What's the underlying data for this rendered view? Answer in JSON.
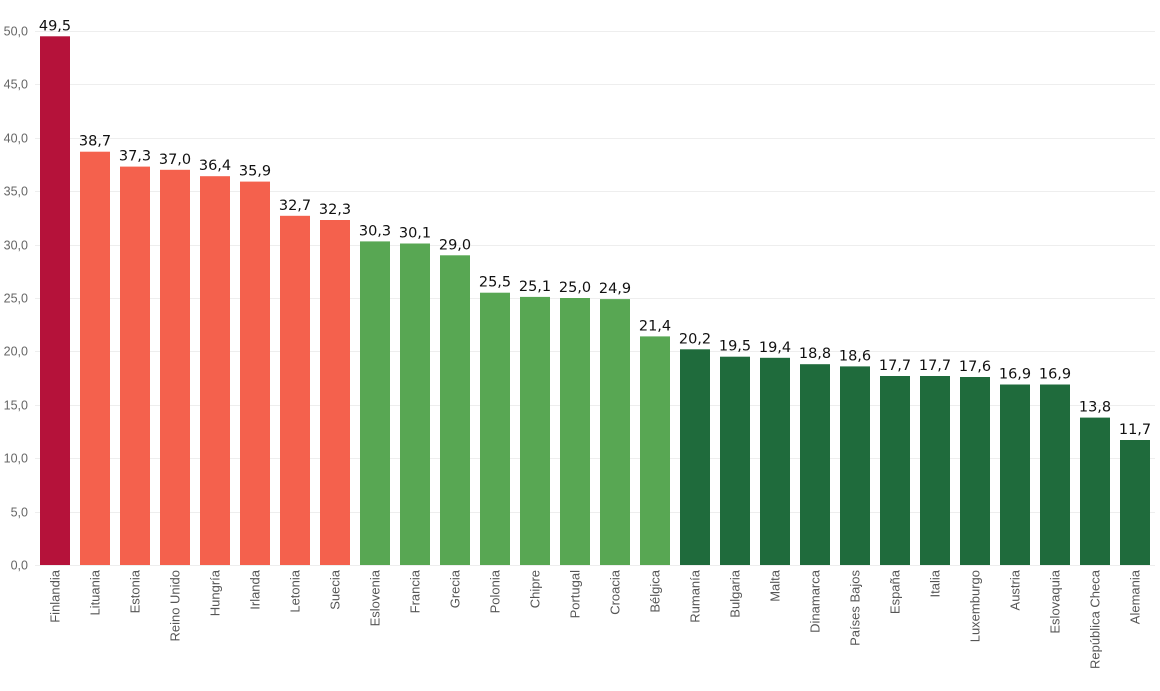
{
  "chart_data": {
    "type": "bar",
    "title": "",
    "xlabel": "",
    "ylabel": "",
    "ylim": [
      0,
      50
    ],
    "yticks": [
      0,
      5,
      10,
      15,
      20,
      25,
      30,
      35,
      40,
      45,
      50
    ],
    "ytick_labels": [
      "0,0",
      "5,0",
      "10,0",
      "15,0",
      "20,0",
      "25,0",
      "30,0",
      "35,0",
      "40,0",
      "45,0",
      "50,0"
    ],
    "grid": true,
    "categories": [
      "Finlandia",
      "Lituania",
      "Estonia",
      "Reino Unido",
      "Hungría",
      "Irlanda",
      "Letonia",
      "Suecia",
      "Eslovenia",
      "Francia",
      "Grecia",
      "Polonia",
      "Chipre",
      "Portugal",
      "Croacia",
      "Bélgica",
      "Rumanía",
      "Bulgaria",
      "Malta",
      "Dinamarca",
      "Países Bajos",
      "España",
      "Italia",
      "Luxemburgo",
      "Austria",
      "Eslovaquia",
      "República Checa",
      "Alemania"
    ],
    "values": [
      49.5,
      38.7,
      37.3,
      37.0,
      36.4,
      35.9,
      32.7,
      32.3,
      30.3,
      30.1,
      29.0,
      25.5,
      25.1,
      25.0,
      24.9,
      21.4,
      20.2,
      19.5,
      19.4,
      18.8,
      18.6,
      17.7,
      17.7,
      17.6,
      16.9,
      16.9,
      13.8,
      11.7
    ],
    "value_labels": [
      "49,5",
      "38,7",
      "37,3",
      "37,0",
      "36,4",
      "35,9",
      "32,7",
      "32,3",
      "30,3",
      "30,1",
      "29,0",
      "25,5",
      "25,1",
      "25,0",
      "24,9",
      "21,4",
      "20,2",
      "19,5",
      "19,4",
      "18,8",
      "18,6",
      "17,7",
      "17,7",
      "17,6",
      "16,9",
      "16,9",
      "13,8",
      "11,7"
    ],
    "bar_color_groups": [
      "max",
      "high",
      "high",
      "high",
      "high",
      "high",
      "high",
      "high",
      "mid",
      "mid",
      "mid",
      "mid",
      "mid",
      "mid",
      "mid",
      "mid",
      "low",
      "low",
      "low",
      "low",
      "low",
      "low",
      "low",
      "low",
      "low",
      "low",
      "low",
      "low"
    ],
    "colors": {
      "max": "#b5123a",
      "high": "#f4614d",
      "mid": "#58a753",
      "low": "#1f6b3c"
    }
  }
}
